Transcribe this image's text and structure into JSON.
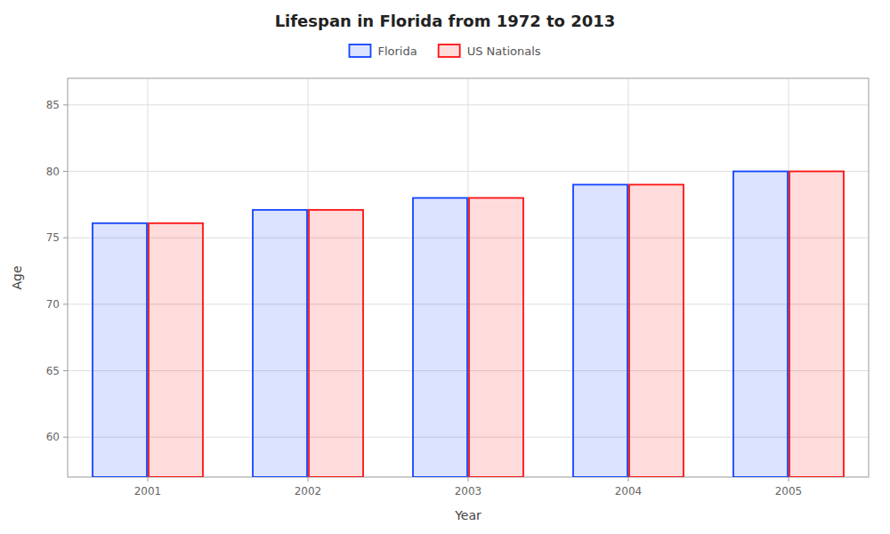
{
  "chart_data": {
    "type": "bar",
    "title": "Lifespan in Florida from 1972 to 2013",
    "x_label": "Year",
    "y_label": "Age",
    "categories": [
      "2001",
      "2002",
      "2003",
      "2004",
      "2005"
    ],
    "series": [
      {
        "name": "Florida",
        "color": "#1144FF",
        "values": [
          76.1,
          77.1,
          78.0,
          79.0,
          80.0
        ]
      },
      {
        "name": "US Nationals",
        "color": "#FF1111",
        "values": [
          76.1,
          77.1,
          78.0,
          79.0,
          80.0
        ]
      }
    ],
    "ylim": [
      57,
      87
    ],
    "yticks": [
      60,
      65,
      70,
      75,
      80,
      85
    ],
    "grid": true,
    "legend": "top"
  }
}
